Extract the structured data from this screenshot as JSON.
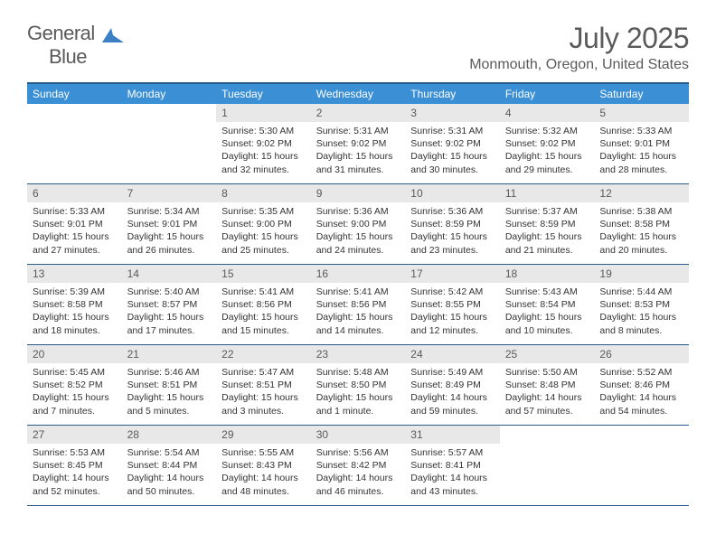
{
  "logo": {
    "text1": "General",
    "text2": "Blue"
  },
  "month_title": "July 2025",
  "location": "Monmouth, Oregon, United States",
  "colors": {
    "header_bg": "#3b8fd4",
    "border": "#2a5a8a",
    "daynum_bg": "#e8e8e8",
    "text_gray": "#5a5a5a"
  },
  "day_names": [
    "Sunday",
    "Monday",
    "Tuesday",
    "Wednesday",
    "Thursday",
    "Friday",
    "Saturday"
  ],
  "first_weekday": 2,
  "days_in_month": 31,
  "days": {
    "1": {
      "sunrise": "5:30 AM",
      "sunset": "9:02 PM",
      "daylight": "15 hours and 32 minutes."
    },
    "2": {
      "sunrise": "5:31 AM",
      "sunset": "9:02 PM",
      "daylight": "15 hours and 31 minutes."
    },
    "3": {
      "sunrise": "5:31 AM",
      "sunset": "9:02 PM",
      "daylight": "15 hours and 30 minutes."
    },
    "4": {
      "sunrise": "5:32 AM",
      "sunset": "9:02 PM",
      "daylight": "15 hours and 29 minutes."
    },
    "5": {
      "sunrise": "5:33 AM",
      "sunset": "9:01 PM",
      "daylight": "15 hours and 28 minutes."
    },
    "6": {
      "sunrise": "5:33 AM",
      "sunset": "9:01 PM",
      "daylight": "15 hours and 27 minutes."
    },
    "7": {
      "sunrise": "5:34 AM",
      "sunset": "9:01 PM",
      "daylight": "15 hours and 26 minutes."
    },
    "8": {
      "sunrise": "5:35 AM",
      "sunset": "9:00 PM",
      "daylight": "15 hours and 25 minutes."
    },
    "9": {
      "sunrise": "5:36 AM",
      "sunset": "9:00 PM",
      "daylight": "15 hours and 24 minutes."
    },
    "10": {
      "sunrise": "5:36 AM",
      "sunset": "8:59 PM",
      "daylight": "15 hours and 23 minutes."
    },
    "11": {
      "sunrise": "5:37 AM",
      "sunset": "8:59 PM",
      "daylight": "15 hours and 21 minutes."
    },
    "12": {
      "sunrise": "5:38 AM",
      "sunset": "8:58 PM",
      "daylight": "15 hours and 20 minutes."
    },
    "13": {
      "sunrise": "5:39 AM",
      "sunset": "8:58 PM",
      "daylight": "15 hours and 18 minutes."
    },
    "14": {
      "sunrise": "5:40 AM",
      "sunset": "8:57 PM",
      "daylight": "15 hours and 17 minutes."
    },
    "15": {
      "sunrise": "5:41 AM",
      "sunset": "8:56 PM",
      "daylight": "15 hours and 15 minutes."
    },
    "16": {
      "sunrise": "5:41 AM",
      "sunset": "8:56 PM",
      "daylight": "15 hours and 14 minutes."
    },
    "17": {
      "sunrise": "5:42 AM",
      "sunset": "8:55 PM",
      "daylight": "15 hours and 12 minutes."
    },
    "18": {
      "sunrise": "5:43 AM",
      "sunset": "8:54 PM",
      "daylight": "15 hours and 10 minutes."
    },
    "19": {
      "sunrise": "5:44 AM",
      "sunset": "8:53 PM",
      "daylight": "15 hours and 8 minutes."
    },
    "20": {
      "sunrise": "5:45 AM",
      "sunset": "8:52 PM",
      "daylight": "15 hours and 7 minutes."
    },
    "21": {
      "sunrise": "5:46 AM",
      "sunset": "8:51 PM",
      "daylight": "15 hours and 5 minutes."
    },
    "22": {
      "sunrise": "5:47 AM",
      "sunset": "8:51 PM",
      "daylight": "15 hours and 3 minutes."
    },
    "23": {
      "sunrise": "5:48 AM",
      "sunset": "8:50 PM",
      "daylight": "15 hours and 1 minute."
    },
    "24": {
      "sunrise": "5:49 AM",
      "sunset": "8:49 PM",
      "daylight": "14 hours and 59 minutes."
    },
    "25": {
      "sunrise": "5:50 AM",
      "sunset": "8:48 PM",
      "daylight": "14 hours and 57 minutes."
    },
    "26": {
      "sunrise": "5:52 AM",
      "sunset": "8:46 PM",
      "daylight": "14 hours and 54 minutes."
    },
    "27": {
      "sunrise": "5:53 AM",
      "sunset": "8:45 PM",
      "daylight": "14 hours and 52 minutes."
    },
    "28": {
      "sunrise": "5:54 AM",
      "sunset": "8:44 PM",
      "daylight": "14 hours and 50 minutes."
    },
    "29": {
      "sunrise": "5:55 AM",
      "sunset": "8:43 PM",
      "daylight": "14 hours and 48 minutes."
    },
    "30": {
      "sunrise": "5:56 AM",
      "sunset": "8:42 PM",
      "daylight": "14 hours and 46 minutes."
    },
    "31": {
      "sunrise": "5:57 AM",
      "sunset": "8:41 PM",
      "daylight": "14 hours and 43 minutes."
    }
  },
  "labels": {
    "sunrise": "Sunrise:",
    "sunset": "Sunset:",
    "daylight": "Daylight:"
  }
}
